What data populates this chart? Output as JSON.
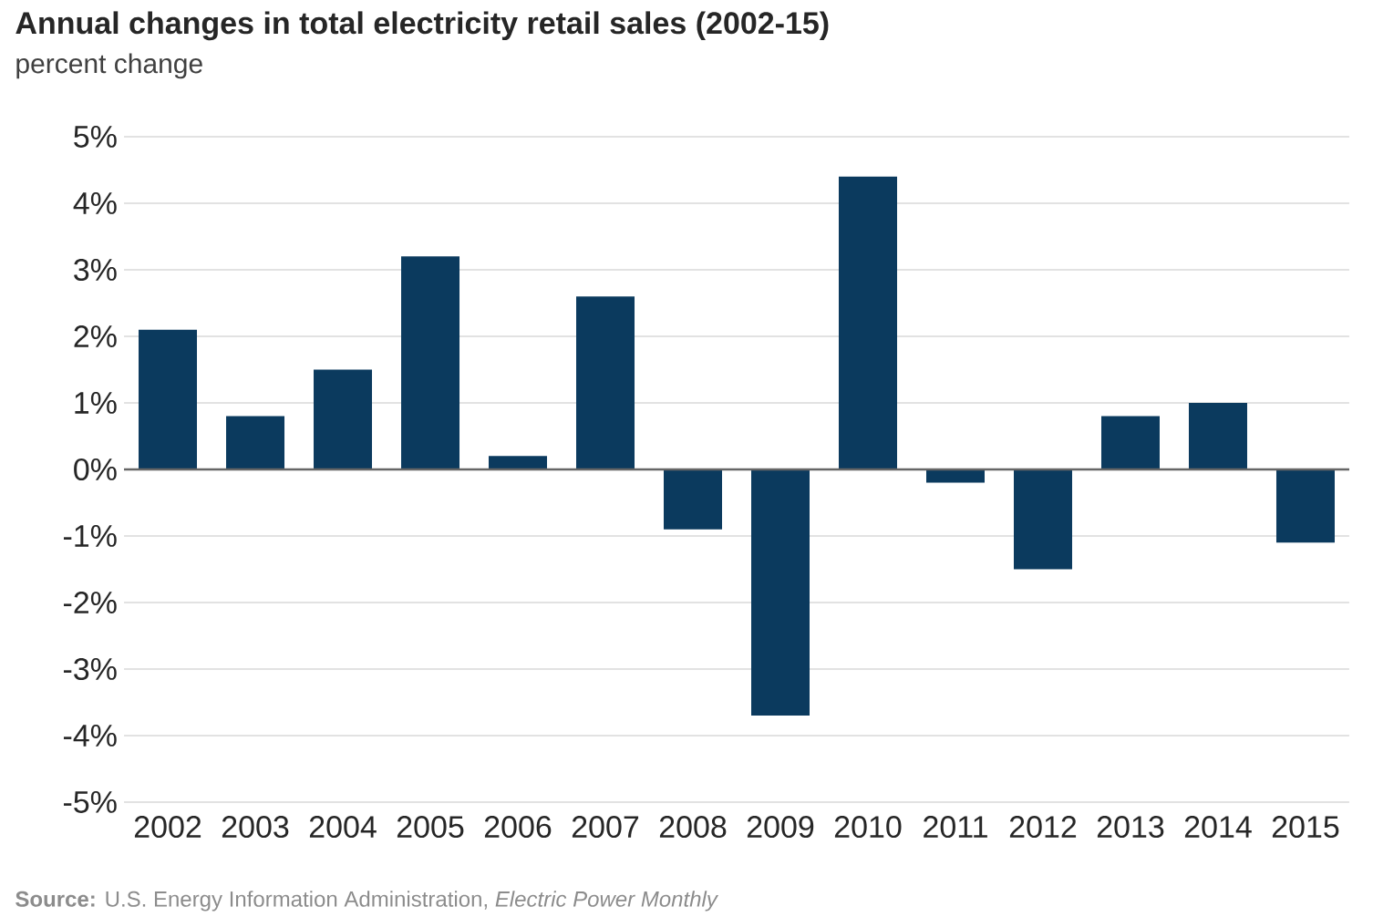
{
  "chart_data": {
    "type": "bar",
    "title": "Annual changes in total electricity retail sales (2002-15)",
    "subtitle": "percent change",
    "categories": [
      "2002",
      "2003",
      "2004",
      "2005",
      "2006",
      "2007",
      "2008",
      "2009",
      "2010",
      "2011",
      "2012",
      "2013",
      "2014",
      "2015"
    ],
    "values": [
      2.1,
      0.8,
      1.5,
      3.2,
      0.2,
      2.6,
      -0.9,
      -3.7,
      4.4,
      -0.2,
      -1.5,
      0.8,
      1.0,
      -1.1
    ],
    "color": "#0b3a5e",
    "ylim": [
      -5,
      5
    ],
    "yticks": [
      {
        "value": -5,
        "label": "-5%"
      },
      {
        "value": -4,
        "label": "-4%"
      },
      {
        "value": -3,
        "label": "-3%"
      },
      {
        "value": -2,
        "label": "-2%"
      },
      {
        "value": -1,
        "label": "-1%"
      },
      {
        "value": 0,
        "label": "0%"
      },
      {
        "value": 1,
        "label": "1%"
      },
      {
        "value": 2,
        "label": "2%"
      },
      {
        "value": 3,
        "label": "3%"
      },
      {
        "value": 4,
        "label": "4%"
      },
      {
        "value": 5,
        "label": "5%"
      }
    ],
    "grid": "y",
    "annotations": [
      "**Source:** U.S. Energy Information Administration, *Electric Power Monthly*"
    ]
  }
}
